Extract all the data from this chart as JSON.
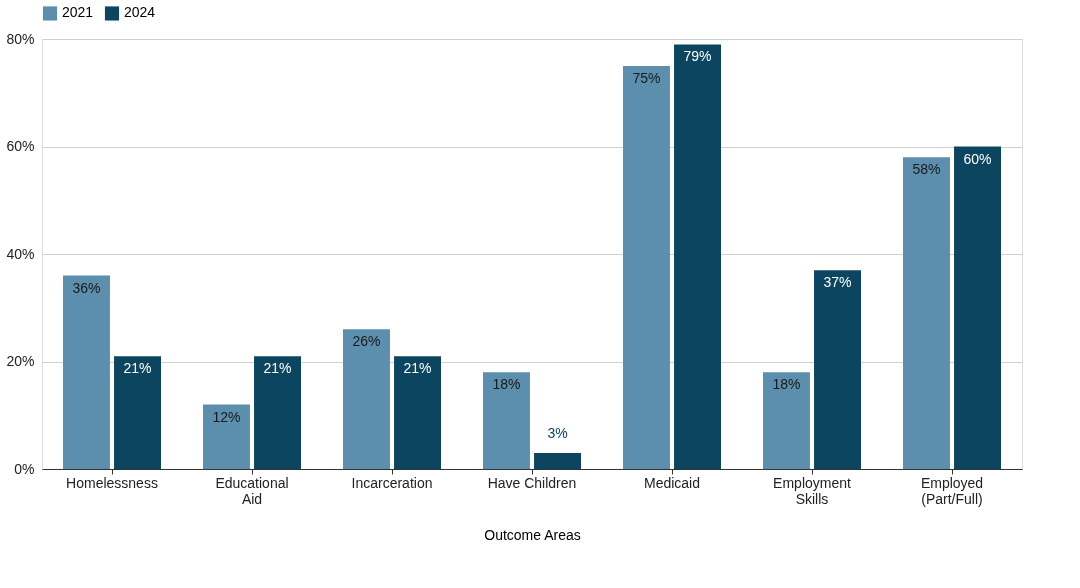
{
  "chart_data": {
    "type": "bar",
    "xlabel": "Outcome Areas",
    "categories": [
      "Homelessness",
      "Educational\nAid",
      "Incarceration",
      "Have Children",
      "Medicaid",
      "Employment\nSkills",
      "Employed\n(Part/Full)"
    ],
    "series": [
      {
        "name": "2021",
        "color": "#5b8fad",
        "values": [
          36,
          12,
          26,
          18,
          75,
          18,
          58
        ],
        "value_labels": [
          "36%",
          "12%",
          "26%",
          "18%",
          "75%",
          "18%",
          "58%"
        ]
      },
      {
        "name": "2024",
        "color": "#0b4560",
        "values": [
          21,
          21,
          21,
          3,
          79,
          37,
          60
        ],
        "value_labels": [
          "21%",
          "21%",
          "21%",
          "3%",
          "79%",
          "37%",
          "60%"
        ]
      }
    ],
    "ylim": [
      0,
      80
    ],
    "yticks": [
      {
        "value": 0,
        "label": "0%"
      },
      {
        "value": 20,
        "label": "20%"
      },
      {
        "value": 40,
        "label": "40%"
      },
      {
        "value": 60,
        "label": "60%"
      },
      {
        "value": 80,
        "label": "80%"
      }
    ],
    "grid": "y",
    "legend": "top"
  }
}
